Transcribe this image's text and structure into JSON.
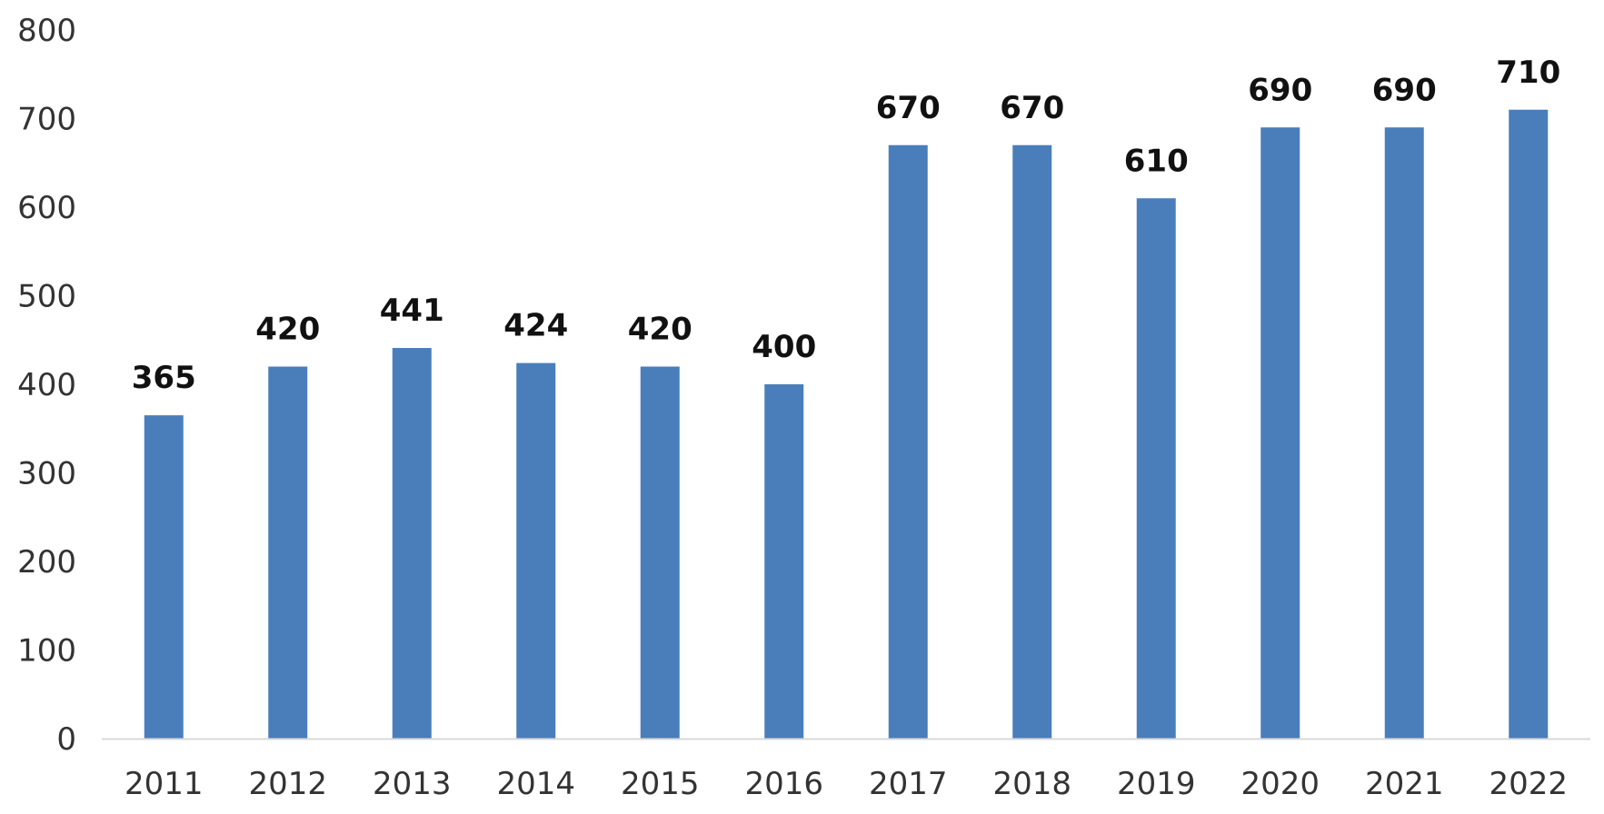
{
  "chart_data": {
    "type": "bar",
    "categories": [
      "2011",
      "2012",
      "2013",
      "2014",
      "2015",
      "2016",
      "2017",
      "2018",
      "2019",
      "2020",
      "2021",
      "2022"
    ],
    "values": [
      365,
      420,
      441,
      424,
      420,
      400,
      670,
      670,
      610,
      690,
      690,
      710
    ],
    "data_labels": [
      "365",
      "420",
      "441",
      "424",
      "420",
      "400",
      "670",
      "670",
      "610",
      "690",
      "690",
      "710"
    ],
    "y_ticks": [
      "0",
      "100",
      "200",
      "300",
      "400",
      "500",
      "600",
      "700",
      "800"
    ],
    "ylim": [
      0,
      800
    ],
    "title": "",
    "xlabel": "",
    "ylabel": "",
    "grid": false,
    "legend": "none",
    "colors": {
      "bar": "#4a7ebb",
      "axis": "#d9d9d9",
      "tick_text": "#333333",
      "label_text": "#111111"
    }
  }
}
